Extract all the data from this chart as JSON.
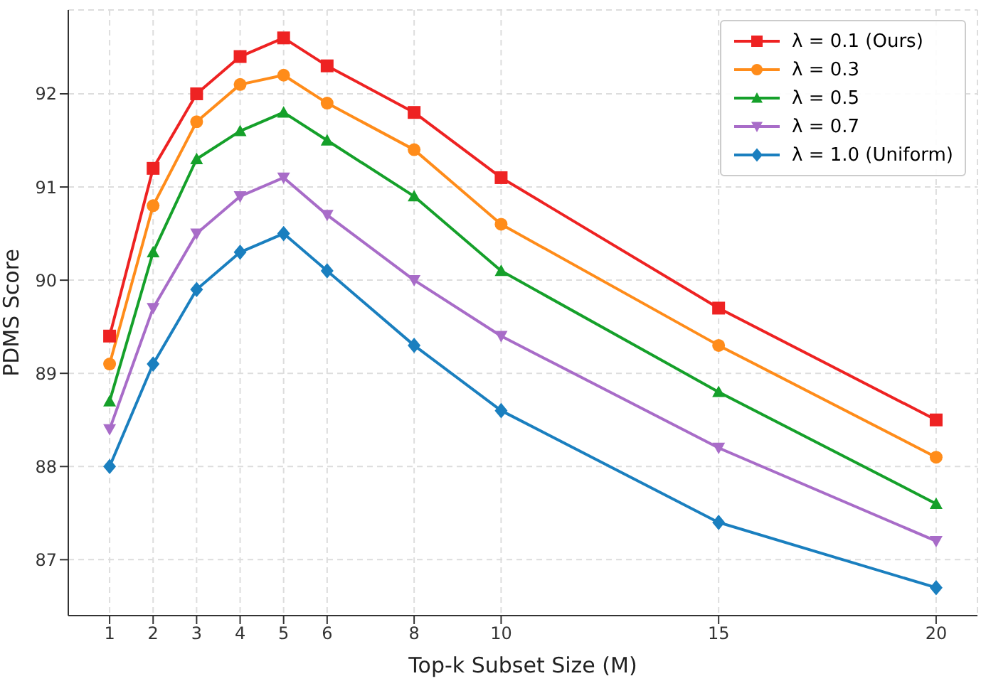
{
  "chart_data": {
    "type": "line",
    "xlabel": "Top-k Subset Size (M)",
    "ylabel": "PDMS Score",
    "x": [
      1,
      2,
      3,
      4,
      5,
      6,
      8,
      10,
      15,
      20
    ],
    "series": [
      {
        "name": "λ = 0.1 (Ours)",
        "color": "#ee2222",
        "marker": "square",
        "values": [
          89.4,
          91.2,
          92.0,
          92.4,
          92.6,
          92.3,
          91.8,
          91.1,
          89.7,
          88.5
        ]
      },
      {
        "name": "λ = 0.3",
        "color": "#ff8c1a",
        "marker": "circle",
        "values": [
          89.1,
          90.8,
          91.7,
          92.1,
          92.2,
          91.9,
          91.4,
          90.6,
          89.3,
          88.1
        ]
      },
      {
        "name": "λ = 0.5",
        "color": "#15a02a",
        "marker": "triangle",
        "values": [
          88.7,
          90.3,
          91.3,
          91.6,
          91.8,
          91.5,
          90.9,
          90.1,
          88.8,
          87.6
        ]
      },
      {
        "name": "λ = 0.7",
        "color": "#a86cc8",
        "marker": "triangle-down",
        "values": [
          88.4,
          89.7,
          90.5,
          90.9,
          91.1,
          90.7,
          90.0,
          89.4,
          88.2,
          87.2
        ]
      },
      {
        "name": "λ = 1.0 (Uniform)",
        "color": "#1a7fbf",
        "marker": "diamond",
        "values": [
          88.0,
          89.1,
          89.9,
          90.3,
          90.5,
          90.1,
          89.3,
          88.6,
          87.4,
          86.7
        ]
      }
    ],
    "xlim": [
      0.05,
      20.95
    ],
    "xticks": [
      1,
      2,
      3,
      4,
      5,
      6,
      8,
      10,
      15,
      20
    ],
    "ylim": [
      86.4,
      92.9
    ],
    "yticks": [
      87,
      88,
      89,
      90,
      91,
      92
    ],
    "grid": true,
    "legend": "top right",
    "line_style": "solid"
  }
}
